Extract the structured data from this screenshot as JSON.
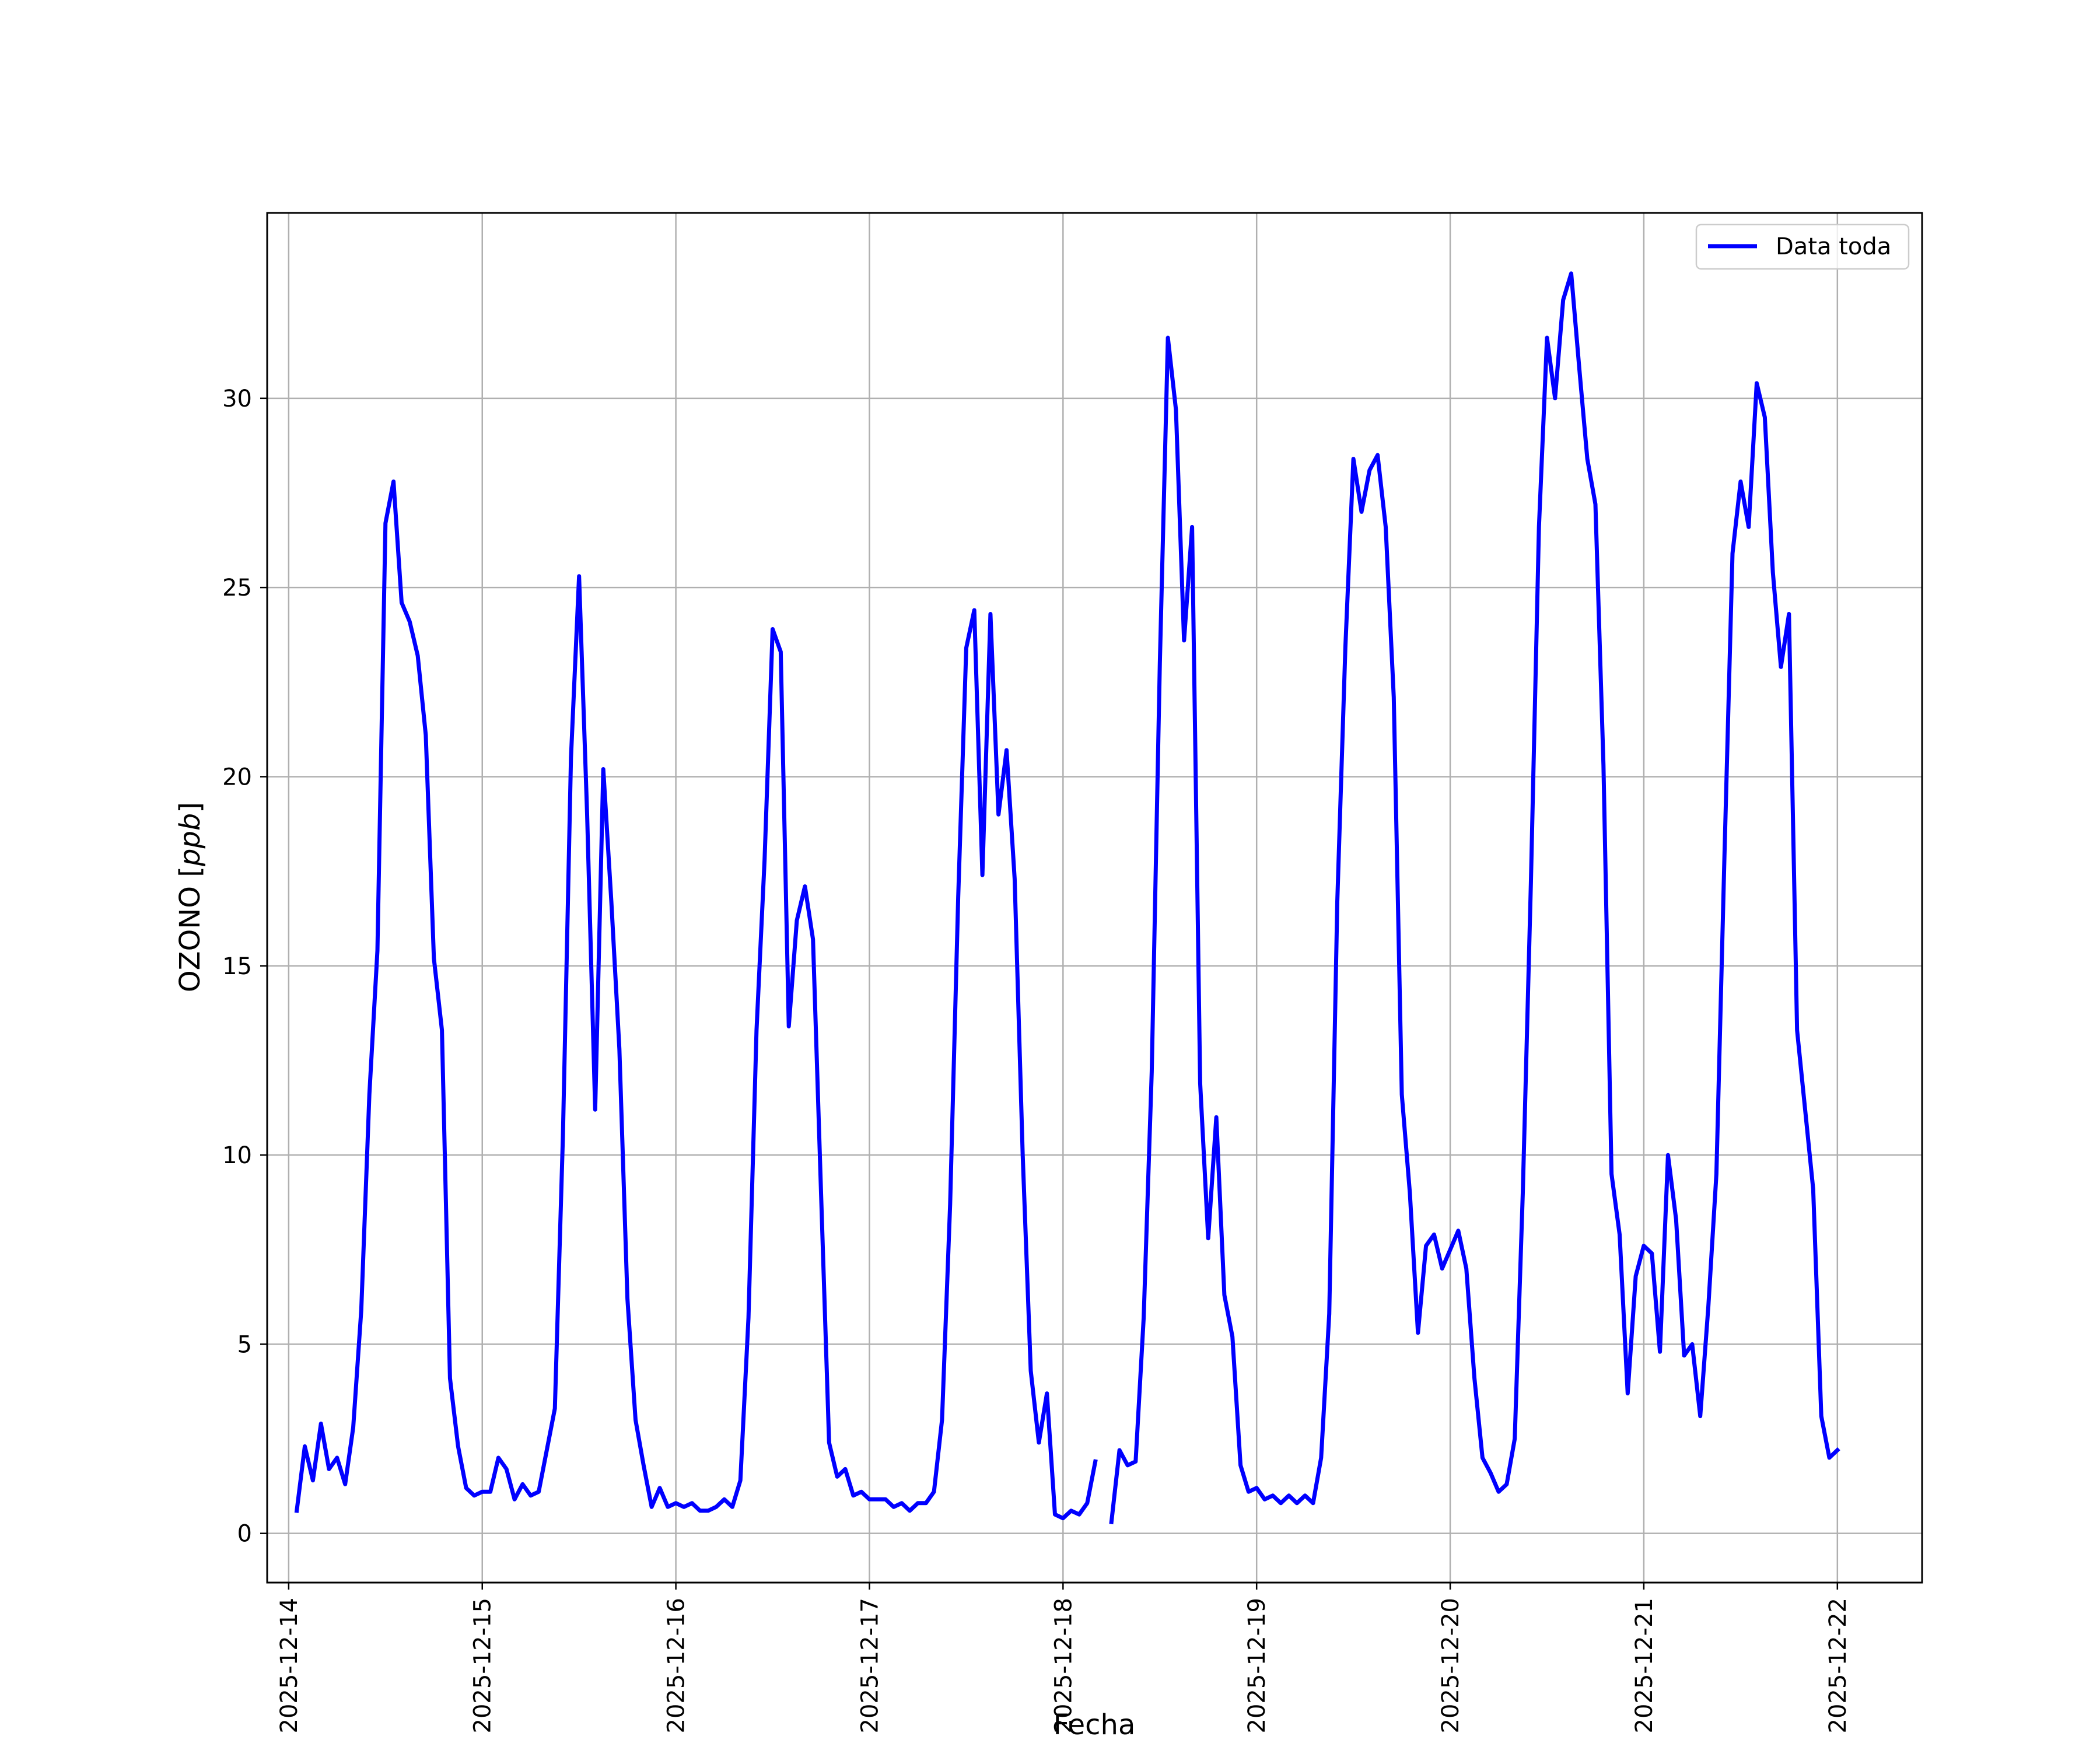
{
  "chart_data": {
    "type": "line",
    "xlabel": "Fecha",
    "ylabel_main": "OZONO [",
    "ylabel_unit": "ppb",
    "ylabel_close": "]",
    "xlim": [
      "2025-12-13T21:20",
      "2025-12-22T10:30"
    ],
    "ylim": [
      -1.3,
      34.9
    ],
    "x_ticks": [
      "2025-12-14",
      "2025-12-15",
      "2025-12-16",
      "2025-12-17",
      "2025-12-18",
      "2025-12-19",
      "2025-12-20",
      "2025-12-21",
      "2025-12-22"
    ],
    "y_ticks": [
      0,
      5,
      10,
      15,
      20,
      25,
      30
    ],
    "grid": true,
    "legend_position": "top-right",
    "colors": {
      "series": "#0000ff",
      "grid": "#b0b0b0",
      "frame": "#000000"
    },
    "series": [
      {
        "name": "Data toda",
        "points": [
          [
            "2025-12-14T01:00",
            0.6
          ],
          [
            "2025-12-14T02:00",
            2.3
          ],
          [
            "2025-12-14T03:00",
            1.4
          ],
          [
            "2025-12-14T04:00",
            2.9
          ],
          [
            "2025-12-14T05:00",
            1.7
          ],
          [
            "2025-12-14T06:00",
            2.0
          ],
          [
            "2025-12-14T07:00",
            1.3
          ],
          [
            "2025-12-14T08:00",
            2.8
          ],
          [
            "2025-12-14T09:00",
            5.9
          ],
          [
            "2025-12-14T10:00",
            11.6
          ],
          [
            "2025-12-14T11:00",
            15.4
          ],
          [
            "2025-12-14T12:00",
            26.7
          ],
          [
            "2025-12-14T13:00",
            27.8
          ],
          [
            "2025-12-14T14:00",
            24.6
          ],
          [
            "2025-12-14T15:00",
            24.1
          ],
          [
            "2025-12-14T16:00",
            23.2
          ],
          [
            "2025-12-14T17:00",
            21.1
          ],
          [
            "2025-12-14T18:00",
            15.2
          ],
          [
            "2025-12-14T19:00",
            13.3
          ],
          [
            "2025-12-14T20:00",
            4.1
          ],
          [
            "2025-12-14T21:00",
            2.3
          ],
          [
            "2025-12-14T22:00",
            1.2
          ],
          [
            "2025-12-14T23:00",
            1.0
          ],
          [
            "2025-12-15T00:00",
            1.1
          ],
          [
            "2025-12-15T01:00",
            1.1
          ],
          [
            "2025-12-15T02:00",
            2.0
          ],
          [
            "2025-12-15T03:00",
            1.7
          ],
          [
            "2025-12-15T04:00",
            0.9
          ],
          [
            "2025-12-15T05:00",
            1.3
          ],
          [
            "2025-12-15T06:00",
            1.0
          ],
          [
            "2025-12-15T07:00",
            1.1
          ],
          [
            "2025-12-15T09:00",
            3.3
          ],
          [
            "2025-12-15T10:00",
            10.5
          ],
          [
            "2025-12-15T11:00",
            20.5
          ],
          [
            "2025-12-15T12:00",
            25.3
          ],
          [
            "2025-12-15T13:00",
            19.0
          ],
          [
            "2025-12-15T14:00",
            11.2
          ],
          [
            "2025-12-15T15:00",
            20.2
          ],
          [
            "2025-12-15T16:00",
            16.7
          ],
          [
            "2025-12-15T17:00",
            12.8
          ],
          [
            "2025-12-15T18:00",
            6.2
          ],
          [
            "2025-12-15T19:00",
            3.0
          ],
          [
            "2025-12-15T20:00",
            1.8
          ],
          [
            "2025-12-15T21:00",
            0.7
          ],
          [
            "2025-12-15T22:00",
            1.2
          ],
          [
            "2025-12-15T23:00",
            0.7
          ],
          [
            "2025-12-16T00:00",
            0.8
          ],
          [
            "2025-12-16T01:00",
            0.7
          ],
          [
            "2025-12-16T02:00",
            0.8
          ],
          [
            "2025-12-16T03:00",
            0.6
          ],
          [
            "2025-12-16T04:00",
            0.6
          ],
          [
            "2025-12-16T05:00",
            0.7
          ],
          [
            "2025-12-16T06:00",
            0.9
          ],
          [
            "2025-12-16T07:00",
            0.7
          ],
          [
            "2025-12-16T08:00",
            1.4
          ],
          [
            "2025-12-16T09:00",
            5.7
          ],
          [
            "2025-12-16T10:00",
            13.3
          ],
          [
            "2025-12-16T11:00",
            17.8
          ],
          [
            "2025-12-16T12:00",
            23.9
          ],
          [
            "2025-12-16T13:00",
            23.3
          ],
          [
            "2025-12-16T14:00",
            13.4
          ],
          [
            "2025-12-16T15:00",
            16.2
          ],
          [
            "2025-12-16T16:00",
            17.1
          ],
          [
            "2025-12-16T17:00",
            15.7
          ],
          [
            "2025-12-16T18:00",
            9.0
          ],
          [
            "2025-12-16T19:00",
            2.4
          ],
          [
            "2025-12-16T20:00",
            1.5
          ],
          [
            "2025-12-16T21:00",
            1.7
          ],
          [
            "2025-12-16T22:00",
            1.0
          ],
          [
            "2025-12-16T23:00",
            1.1
          ],
          [
            "2025-12-17T00:00",
            0.9
          ],
          [
            "2025-12-17T01:00",
            0.9
          ],
          [
            "2025-12-17T02:00",
            0.9
          ],
          [
            "2025-12-17T03:00",
            0.7
          ],
          [
            "2025-12-17T04:00",
            0.8
          ],
          [
            "2025-12-17T05:00",
            0.6
          ],
          [
            "2025-12-17T06:00",
            0.8
          ],
          [
            "2025-12-17T07:00",
            0.8
          ],
          [
            "2025-12-17T08:00",
            1.1
          ],
          [
            "2025-12-17T09:00",
            3.0
          ],
          [
            "2025-12-17T10:00",
            8.7
          ],
          [
            "2025-12-17T11:00",
            16.8
          ],
          [
            "2025-12-17T12:00",
            23.4
          ],
          [
            "2025-12-17T13:00",
            24.4
          ],
          [
            "2025-12-17T14:00",
            17.4
          ],
          [
            "2025-12-17T15:00",
            24.3
          ],
          [
            "2025-12-17T16:00",
            19.0
          ],
          [
            "2025-12-17T17:00",
            20.7
          ],
          [
            "2025-12-17T18:00",
            17.3
          ],
          [
            "2025-12-17T19:00",
            10.0
          ],
          [
            "2025-12-17T20:00",
            4.3
          ],
          [
            "2025-12-17T21:00",
            2.4
          ],
          [
            "2025-12-17T22:00",
            3.7
          ],
          [
            "2025-12-17T23:00",
            0.5
          ],
          [
            "2025-12-18T00:00",
            0.4
          ],
          [
            "2025-12-18T01:00",
            0.6
          ],
          [
            "2025-12-18T02:00",
            0.5
          ],
          [
            "2025-12-18T03:00",
            0.8
          ],
          [
            "2025-12-18T04:00",
            1.9
          ],
          [
            "2025-12-18T05:00",
            null
          ],
          [
            "2025-12-18T06:00",
            0.3
          ],
          [
            "2025-12-18T07:00",
            2.2
          ],
          [
            "2025-12-18T08:00",
            1.8
          ],
          [
            "2025-12-18T09:00",
            1.9
          ],
          [
            "2025-12-18T10:00",
            5.7
          ],
          [
            "2025-12-18T11:00",
            12.2
          ],
          [
            "2025-12-18T12:00",
            23.0
          ],
          [
            "2025-12-18T13:00",
            31.6
          ],
          [
            "2025-12-18T14:00",
            29.7
          ],
          [
            "2025-12-18T15:00",
            23.6
          ],
          [
            "2025-12-18T16:00",
            26.6
          ],
          [
            "2025-12-18T17:00",
            11.9
          ],
          [
            "2025-12-18T18:00",
            7.8
          ],
          [
            "2025-12-18T19:00",
            11.0
          ],
          [
            "2025-12-18T20:00",
            6.3
          ],
          [
            "2025-12-18T21:00",
            5.2
          ],
          [
            "2025-12-18T22:00",
            1.8
          ],
          [
            "2025-12-18T23:00",
            1.1
          ],
          [
            "2025-12-19T00:00",
            1.2
          ],
          [
            "2025-12-19T01:00",
            0.9
          ],
          [
            "2025-12-19T02:00",
            1.0
          ],
          [
            "2025-12-19T03:00",
            0.8
          ],
          [
            "2025-12-19T04:00",
            1.0
          ],
          [
            "2025-12-19T05:00",
            0.8
          ],
          [
            "2025-12-19T06:00",
            1.0
          ],
          [
            "2025-12-19T07:00",
            0.8
          ],
          [
            "2025-12-19T08:00",
            2.0
          ],
          [
            "2025-12-19T09:00",
            5.8
          ],
          [
            "2025-12-19T10:00",
            16.7
          ],
          [
            "2025-12-19T11:00",
            23.4
          ],
          [
            "2025-12-19T12:00",
            28.4
          ],
          [
            "2025-12-19T13:00",
            27.0
          ],
          [
            "2025-12-19T14:00",
            28.1
          ],
          [
            "2025-12-19T15:00",
            28.5
          ],
          [
            "2025-12-19T16:00",
            26.6
          ],
          [
            "2025-12-19T17:00",
            22.1
          ],
          [
            "2025-12-19T18:00",
            11.6
          ],
          [
            "2025-12-19T19:00",
            9.0
          ],
          [
            "2025-12-19T20:00",
            5.3
          ],
          [
            "2025-12-19T21:00",
            7.6
          ],
          [
            "2025-12-19T22:00",
            7.9
          ],
          [
            "2025-12-19T23:00",
            7.0
          ],
          [
            "2025-12-20T00:00",
            7.5
          ],
          [
            "2025-12-20T01:00",
            8.0
          ],
          [
            "2025-12-20T02:00",
            7.0
          ],
          [
            "2025-12-20T03:00",
            4.1
          ],
          [
            "2025-12-20T04:00",
            2.0
          ],
          [
            "2025-12-20T05:00",
            1.6
          ],
          [
            "2025-12-20T06:00",
            1.1
          ],
          [
            "2025-12-20T07:00",
            1.3
          ],
          [
            "2025-12-20T08:00",
            2.5
          ],
          [
            "2025-12-20T09:00",
            9.0
          ],
          [
            "2025-12-20T10:00",
            17.2
          ],
          [
            "2025-12-20T11:00",
            26.6
          ],
          [
            "2025-12-20T12:00",
            31.6
          ],
          [
            "2025-12-20T13:00",
            30.0
          ],
          [
            "2025-12-20T14:00",
            32.6
          ],
          [
            "2025-12-20T15:00",
            33.3
          ],
          [
            "2025-12-20T16:00",
            30.8
          ],
          [
            "2025-12-20T17:00",
            28.4
          ],
          [
            "2025-12-20T18:00",
            27.2
          ],
          [
            "2025-12-20T19:00",
            20.3
          ],
          [
            "2025-12-20T20:00",
            9.5
          ],
          [
            "2025-12-20T21:00",
            7.9
          ],
          [
            "2025-12-20T22:00",
            3.7
          ],
          [
            "2025-12-20T23:00",
            6.8
          ],
          [
            "2025-12-21T00:00",
            7.6
          ],
          [
            "2025-12-21T01:00",
            7.4
          ],
          [
            "2025-12-21T02:00",
            4.8
          ],
          [
            "2025-12-21T03:00",
            10.0
          ],
          [
            "2025-12-21T04:00",
            8.3
          ],
          [
            "2025-12-21T05:00",
            4.7
          ],
          [
            "2025-12-21T06:00",
            5.0
          ],
          [
            "2025-12-21T07:00",
            3.1
          ],
          [
            "2025-12-21T08:00",
            6.0
          ],
          [
            "2025-12-21T09:00",
            9.5
          ],
          [
            "2025-12-21T10:00",
            17.9
          ],
          [
            "2025-12-21T11:00",
            25.9
          ],
          [
            "2025-12-21T12:00",
            27.8
          ],
          [
            "2025-12-21T13:00",
            26.6
          ],
          [
            "2025-12-21T14:00",
            30.4
          ],
          [
            "2025-12-21T15:00",
            29.5
          ],
          [
            "2025-12-21T16:00",
            25.4
          ],
          [
            "2025-12-21T17:00",
            22.9
          ],
          [
            "2025-12-21T18:00",
            24.3
          ],
          [
            "2025-12-21T19:00",
            13.3
          ],
          [
            "2025-12-21T20:00",
            11.2
          ],
          [
            "2025-12-21T21:00",
            9.1
          ],
          [
            "2025-12-21T22:00",
            3.1
          ],
          [
            "2025-12-21T23:00",
            2.0
          ],
          [
            "2025-12-22T00:00",
            2.2
          ]
        ]
      }
    ]
  }
}
